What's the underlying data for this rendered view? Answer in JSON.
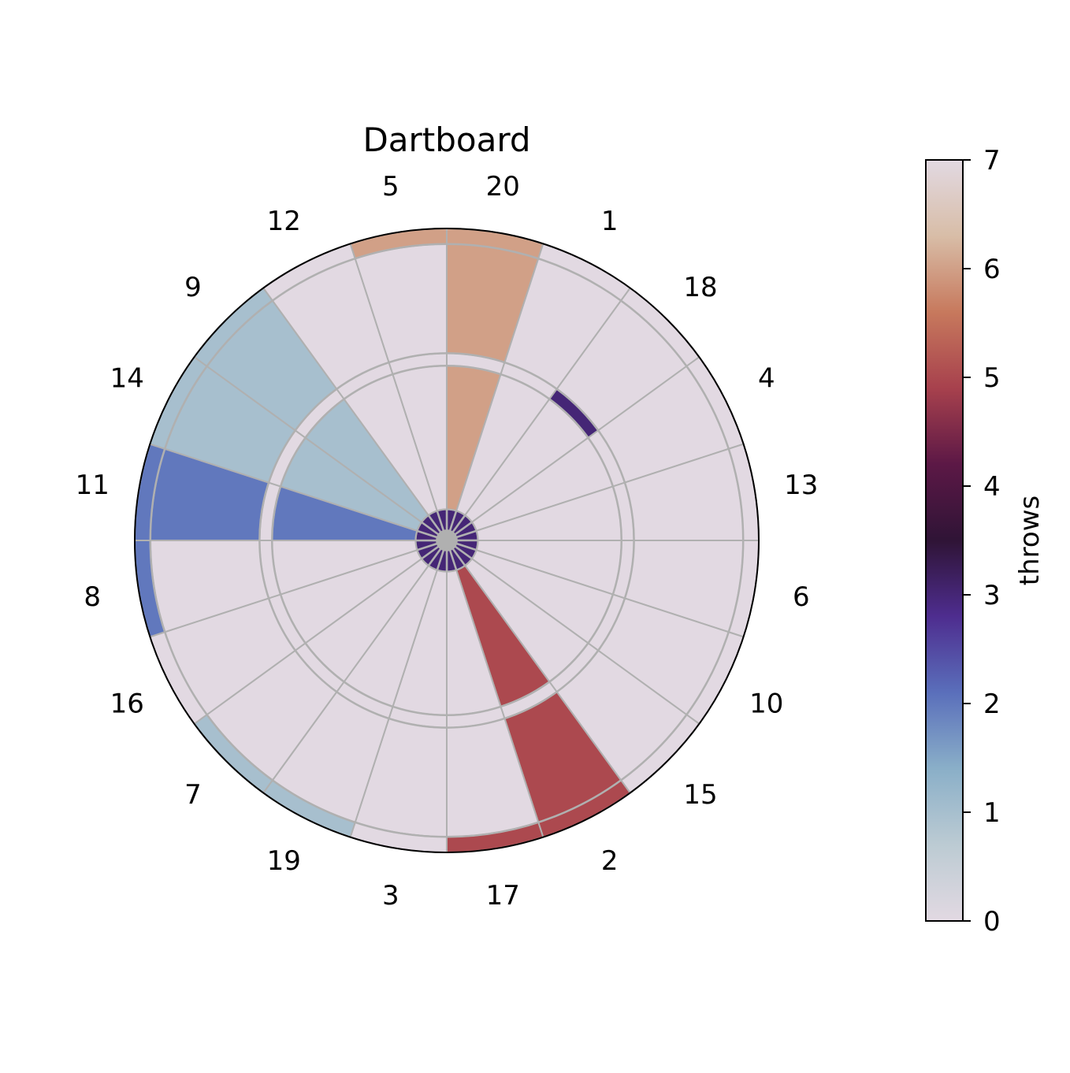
{
  "chart_data": {
    "type": "polar-heatmap",
    "title": "Dartboard",
    "sectors": [
      "20",
      "1",
      "18",
      "4",
      "13",
      "6",
      "10",
      "15",
      "2",
      "17",
      "3",
      "19",
      "7",
      "16",
      "8",
      "11",
      "14",
      "9",
      "12",
      "5"
    ],
    "rings": [
      "bull",
      "inner single",
      "treble",
      "outer single",
      "double"
    ],
    "counts": {
      "bull": 3,
      "inner single": {
        "20": 6,
        "14": 1,
        "9": 1,
        "11": 2,
        "2": 5
      },
      "treble": {
        "18": 3
      },
      "outer single": {
        "20": 6,
        "14": 1,
        "9": 1,
        "11": 2,
        "2": 5
      },
      "double": {
        "20": 6,
        "5": 6,
        "19": 1,
        "7": 1,
        "9": 1,
        "14": 1,
        "11": 2,
        "8": 2,
        "2": 5,
        "17": 5
      }
    },
    "colorbar": {
      "label": "throws",
      "min": 0,
      "max": 7,
      "ticks": [
        "0",
        "1",
        "2",
        "3",
        "4",
        "5",
        "6",
        "7"
      ],
      "colormap": "twilight",
      "stops": [
        "#e2d9e2",
        "#bccbd3",
        "#8aafc8",
        "#5a6fbb",
        "#4e2d8f",
        "#2f1436",
        "#5c1846",
        "#a7414d",
        "#c7795d",
        "#d8bda7",
        "#e2d9e2"
      ]
    },
    "gridlines": true
  }
}
